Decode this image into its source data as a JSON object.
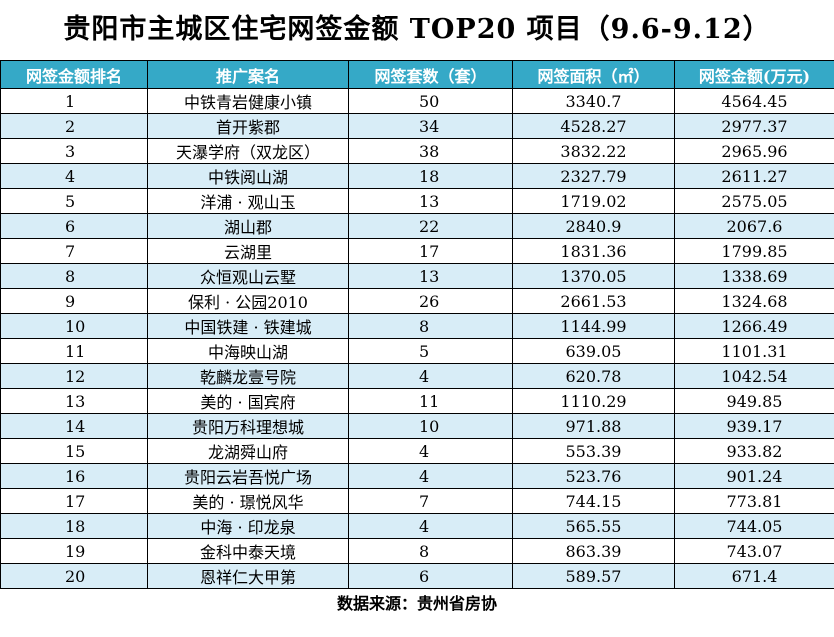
{
  "title": "贵阳市主城区住宅网签金额 TOP20 项目（9.6-9.12）",
  "headers": [
    "网签金额排名",
    "推广案名",
    "网签套数（套）",
    "网签面积（㎡）",
    "网签金额(万元)"
  ],
  "rows": [
    {
      "rank": "1",
      "name": "中铁青岩健康小镇",
      "units": "50",
      "area": "3340.7",
      "amount": "4564.45"
    },
    {
      "rank": "2",
      "name": "首开紫郡",
      "units": "34",
      "area": "4528.27",
      "amount": "2977.37"
    },
    {
      "rank": "3",
      "name": "天瀑学府（双龙区）",
      "units": "38",
      "area": "3832.22",
      "amount": "2965.96"
    },
    {
      "rank": "4",
      "name": "中铁阅山湖",
      "units": "18",
      "area": "2327.79",
      "amount": "2611.27"
    },
    {
      "rank": "5",
      "name": "洋浦 · 观山玉",
      "units": "13",
      "area": "1719.02",
      "amount": "2575.05"
    },
    {
      "rank": "6",
      "name": "湖山郡",
      "units": "22",
      "area": "2840.9",
      "amount": "2067.6"
    },
    {
      "rank": "7",
      "name": "云湖里",
      "units": "17",
      "area": "1831.36",
      "amount": "1799.85"
    },
    {
      "rank": "8",
      "name": "众恒观山云墅",
      "units": "13",
      "area": "1370.05",
      "amount": "1338.69"
    },
    {
      "rank": "9",
      "name": "保利 · 公园2010",
      "units": "26",
      "area": "2661.53",
      "amount": "1324.68"
    },
    {
      "rank": "10",
      "name": "中国铁建 · 铁建城",
      "units": "8",
      "area": "1144.99",
      "amount": "1266.49"
    },
    {
      "rank": "11",
      "name": "中海映山湖",
      "units": "5",
      "area": "639.05",
      "amount": "1101.31"
    },
    {
      "rank": "12",
      "name": "乾麟龙壹号院",
      "units": "4",
      "area": "620.78",
      "amount": "1042.54"
    },
    {
      "rank": "13",
      "name": "美的 · 国宾府",
      "units": "11",
      "area": "1110.29",
      "amount": "949.85"
    },
    {
      "rank": "14",
      "name": "贵阳万科理想城",
      "units": "10",
      "area": "971.88",
      "amount": "939.17"
    },
    {
      "rank": "15",
      "name": "龙湖舜山府",
      "units": "4",
      "area": "553.39",
      "amount": "933.82"
    },
    {
      "rank": "16",
      "name": "贵阳云岩吾悦广场",
      "units": "4",
      "area": "523.76",
      "amount": "901.24"
    },
    {
      "rank": "17",
      "name": "美的 · 璟悦风华",
      "units": "7",
      "area": "744.15",
      "amount": "773.81"
    },
    {
      "rank": "18",
      "name": "中海 · 印龙泉",
      "units": "4",
      "area": "565.55",
      "amount": "744.05"
    },
    {
      "rank": "19",
      "name": "金科中泰天境",
      "units": "8",
      "area": "863.39",
      "amount": "743.07"
    },
    {
      "rank": "20",
      "name": "恩祥仁大甲第",
      "units": "6",
      "area": "589.57",
      "amount": "671.4"
    }
  ],
  "footer": "数据来源：贵州省房协",
  "colors": {
    "header_bg": "#35a9c7",
    "stripe_bg": "#d8edf7"
  }
}
